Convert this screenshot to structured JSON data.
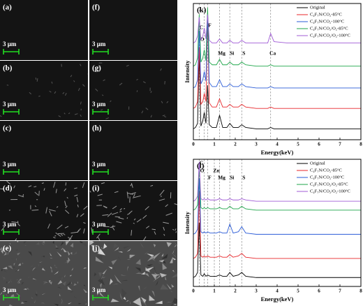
{
  "panels": [
    {
      "label": "(a)",
      "scale": "3 μm"
    },
    {
      "label": "(b)",
      "scale": "3 μm"
    },
    {
      "label": "(c)",
      "scale": "3 μm"
    },
    {
      "label": "(d)",
      "scale": "3 μm"
    },
    {
      "label": "(e)",
      "scale": "3 μm"
    },
    {
      "label": "(f)",
      "scale": "3 μm"
    },
    {
      "label": "(g)",
      "scale": "3 μm"
    },
    {
      "label": "(h)",
      "scale": "3 μm"
    },
    {
      "label": "(i)",
      "scale": "3 μm"
    },
    {
      "label": "(j)",
      "scale": "3 μm"
    }
  ],
  "chart_data": [
    {
      "type": "line",
      "panel_label": "(k)",
      "xlabel": "Energy(keV)",
      "ylabel": "Intensity",
      "xlim": [
        0,
        8
      ],
      "xticks": [
        0,
        1,
        2,
        3,
        4,
        5,
        6,
        7,
        8
      ],
      "ylim": [
        0,
        100
      ],
      "legend": "upper right",
      "x": [
        0,
        0.1,
        0.2,
        0.28,
        0.36,
        0.45,
        0.52,
        0.6,
        0.68,
        0.76,
        0.9,
        1.1,
        1.25,
        1.4,
        1.6,
        1.74,
        1.9,
        2.15,
        2.31,
        2.5,
        3.0,
        3.55,
        3.69,
        3.85,
        4.5,
        5,
        6,
        7,
        8
      ],
      "series": [
        {
          "name": "Original",
          "color": "#000000",
          "values": [
            8,
            9,
            12,
            62,
            10,
            14,
            20,
            12,
            40,
            11,
            9,
            9,
            18,
            9,
            9,
            12,
            9,
            9,
            11,
            9,
            8,
            8,
            9,
            8,
            8,
            8,
            8,
            8,
            8
          ]
        },
        {
          "name": "C₄F₇N/CO₂-85°C",
          "color": "#e8262a",
          "values": [
            23,
            24,
            28,
            68,
            26,
            28,
            34,
            28,
            90,
            27,
            24,
            24,
            30,
            24,
            24,
            26,
            24,
            24,
            26,
            24,
            23,
            23,
            24,
            23,
            23,
            23,
            23,
            23,
            23
          ]
        },
        {
          "name": "C₄F₇N/CO₂-100°C",
          "color": "#2a5bd7",
          "values": [
            38,
            39,
            44,
            80,
            41,
            44,
            50,
            43,
            92,
            42,
            39,
            39,
            44,
            39,
            39,
            41,
            39,
            39,
            41,
            39,
            38,
            38,
            39,
            38,
            38,
            38,
            38,
            38,
            38
          ]
        },
        {
          "name": "C₄F₇N/CO₂/O₂-85°C",
          "color": "#1fa64a",
          "values": [
            54,
            55,
            60,
            92,
            57,
            60,
            66,
            58,
            97,
            57,
            55,
            55,
            59,
            55,
            55,
            57,
            55,
            55,
            57,
            55,
            54,
            54,
            55,
            54,
            54,
            54,
            54,
            54,
            54
          ]
        },
        {
          "name": "C₄F₇N/CO₂/O₂-100°C",
          "color": "#a05bd6",
          "values": [
            71,
            72,
            76,
            90,
            73,
            76,
            82,
            74,
            92,
            73,
            71,
            71,
            74,
            71,
            71,
            73,
            71,
            71,
            73,
            71,
            71,
            71,
            78,
            72,
            71,
            71,
            71,
            71,
            71
          ]
        }
      ],
      "annotations": [
        {
          "text": "C",
          "x": 0.28
        },
        {
          "text": "O",
          "x": 0.52
        },
        {
          "text": "F",
          "x": 0.68
        },
        {
          "text": "Mg",
          "x": 1.25
        },
        {
          "text": "Si",
          "x": 1.74
        },
        {
          "text": "S",
          "x": 2.31
        },
        {
          "text": "Ca",
          "x": 3.69
        }
      ]
    },
    {
      "type": "line",
      "panel_label": "(l)",
      "xlabel": "Energy(keV)",
      "ylabel": "Intensity",
      "xlim": [
        0,
        8
      ],
      "xticks": [
        0,
        1,
        2,
        3,
        4,
        5,
        6,
        7,
        8
      ],
      "ylim": [
        0,
        100
      ],
      "legend": "upper right",
      "x": [
        0,
        0.1,
        0.2,
        0.28,
        0.36,
        0.45,
        0.52,
        0.6,
        0.68,
        0.8,
        1.0,
        1.1,
        1.25,
        1.4,
        1.6,
        1.74,
        1.9,
        2.15,
        2.31,
        2.5,
        3,
        4,
        5,
        6,
        7,
        8
      ],
      "series": [
        {
          "name": "Original",
          "color": "#000000",
          "values": [
            7,
            8,
            11,
            50,
            9,
            8,
            10,
            8,
            9,
            8,
            8,
            8,
            9,
            8,
            8,
            11,
            8,
            9,
            11,
            8,
            7,
            7,
            7,
            7,
            7,
            7
          ]
        },
        {
          "name": "C₄F₇N/CO₂-85°C",
          "color": "#e8262a",
          "values": [
            22,
            23,
            26,
            75,
            24,
            23,
            24,
            23,
            24,
            23,
            23,
            23,
            24,
            23,
            23,
            25,
            23,
            24,
            26,
            23,
            22,
            22,
            22,
            22,
            22,
            22
          ]
        },
        {
          "name": "C₄F₇N/CO₂-100°C",
          "color": "#2a5bd7",
          "values": [
            41,
            42,
            45,
            85,
            43,
            42,
            43,
            42,
            43,
            42,
            42,
            42,
            43,
            42,
            42,
            49,
            42,
            43,
            47,
            42,
            41,
            41,
            41,
            41,
            41,
            41
          ]
        },
        {
          "name": "C₄F₇N/CO₂/O₂-85°C",
          "color": "#1fa64a",
          "values": [
            60,
            61,
            64,
            95,
            62,
            61,
            62,
            61,
            62,
            61,
            61,
            61,
            62,
            61,
            61,
            63,
            61,
            61,
            63,
            61,
            60,
            60,
            60,
            60,
            60,
            60
          ]
        },
        {
          "name": "C₄F₇N/CO₂/O₂-100°C",
          "color": "#a05bd6",
          "values": [
            67,
            68,
            71,
            98,
            69,
            68,
            69,
            68,
            69,
            68,
            68,
            68,
            69,
            68,
            68,
            69,
            68,
            68,
            69,
            68,
            67,
            67,
            67,
            67,
            67,
            67
          ]
        }
      ],
      "annotations": [
        {
          "text": "C",
          "x": 0.28
        },
        {
          "text": "O",
          "x": 0.52
        },
        {
          "text": "F",
          "x": 0.68
        },
        {
          "text": "Zn",
          "x": 1.0
        },
        {
          "text": "Mg",
          "x": 1.25
        },
        {
          "text": "Si",
          "x": 1.74
        },
        {
          "text": "S",
          "x": 2.31
        }
      ]
    }
  ]
}
